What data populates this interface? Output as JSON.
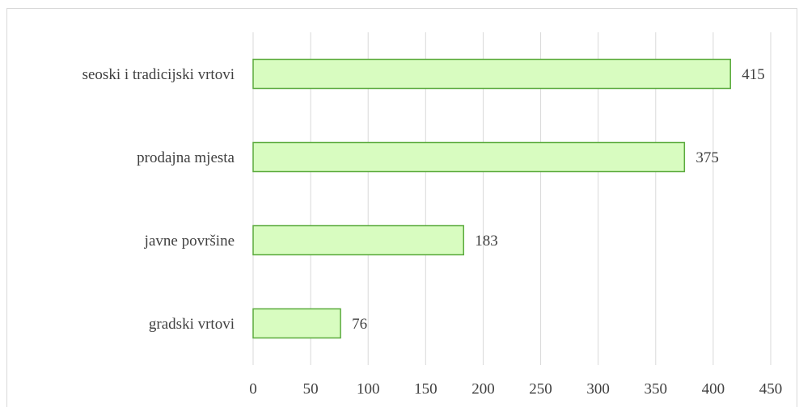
{
  "chart_data": {
    "type": "bar",
    "orientation": "horizontal",
    "categories": [
      "seoski i tradicijski vrtovi",
      "prodajna mjesta",
      "javne površine",
      "gradski vrtovi"
    ],
    "values": [
      415,
      375,
      183,
      76
    ],
    "color": "#d8fcc0",
    "edgecolor": "#5aaa3c",
    "xlim": [
      0,
      450
    ],
    "xticks": [
      0,
      50,
      100,
      150,
      200,
      250,
      300,
      350,
      400,
      450
    ],
    "grid": true
  }
}
